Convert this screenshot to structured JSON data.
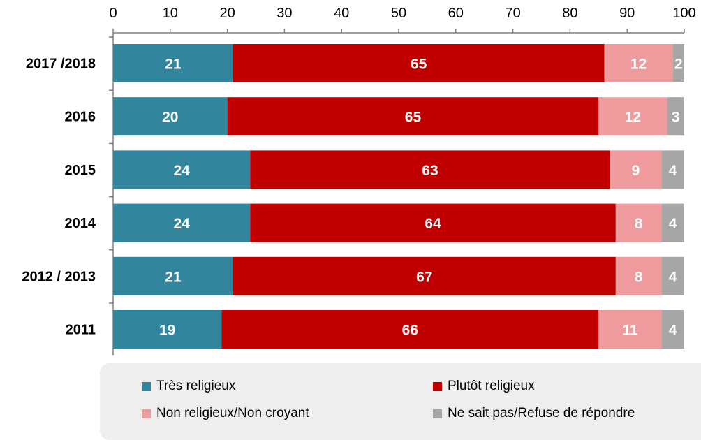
{
  "chart_data": {
    "type": "bar",
    "orientation": "horizontal",
    "stacked": true,
    "categories": [
      "2017 /2018",
      "2016",
      "2015",
      "2014",
      "2012 / 2013",
      "2011"
    ],
    "series": [
      {
        "name": "Très religieux",
        "color": "#31859c",
        "values": [
          21,
          20,
          24,
          24,
          21,
          19
        ]
      },
      {
        "name": "Plutôt religieux",
        "color": "#c00000",
        "values": [
          65,
          65,
          63,
          64,
          67,
          66
        ]
      },
      {
        "name": "Non religieux/Non croyant",
        "color": "#ef9a9c",
        "values": [
          12,
          12,
          9,
          8,
          8,
          11
        ]
      },
      {
        "name": "Ne sait pas/Refuse de répondre",
        "color": "#a6a6a6",
        "values": [
          2,
          3,
          4,
          4,
          4,
          4
        ]
      }
    ],
    "x_ticks": [
      0,
      10,
      20,
      30,
      40,
      50,
      60,
      70,
      80,
      90,
      100
    ],
    "xlim": [
      0,
      100
    ],
    "x_axis_position": "top",
    "grid": false,
    "legend_position": "bottom"
  }
}
